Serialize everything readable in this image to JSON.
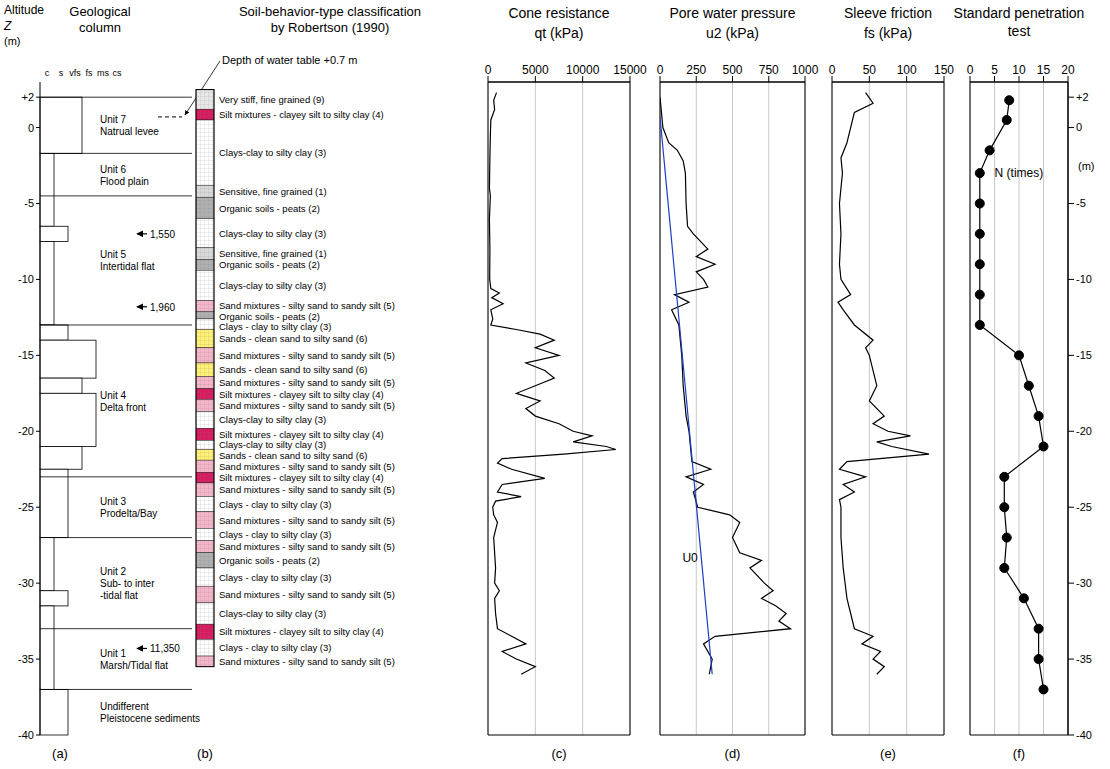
{
  "chart_data": [
    {
      "type": "geological_column",
      "panel": "(a)",
      "title": "Geological column",
      "y_label": "Altitude",
      "y_symbol": "Z",
      "y_unit": "(m)",
      "ylim": [
        -40,
        3
      ],
      "yticks": [
        {
          "value": 2,
          "label": "+2"
        },
        0,
        -5,
        -10,
        -15,
        -20,
        -25,
        -30,
        -35,
        -40
      ],
      "grain_sizes": [
        "c",
        "s",
        "vfs",
        "fs",
        "ms",
        "cs"
      ],
      "layers": [
        {
          "top": 2,
          "bottom": -1.7,
          "grain": "vfs"
        },
        {
          "top": -1.7,
          "bottom": -6.5,
          "grain": "c"
        },
        {
          "top": -6.5,
          "bottom": -7.5,
          "grain": "s"
        },
        {
          "top": -7.5,
          "bottom": -13,
          "grain": "c"
        },
        {
          "top": -13,
          "bottom": -14,
          "grain": "s"
        },
        {
          "top": -14,
          "bottom": -16.5,
          "grain": "fs"
        },
        {
          "top": -16.5,
          "bottom": -17.5,
          "grain": "vfs"
        },
        {
          "top": -17.5,
          "bottom": -21,
          "grain": "fs"
        },
        {
          "top": -21,
          "bottom": -22.5,
          "grain": "vfs"
        },
        {
          "top": -22.5,
          "bottom": -27,
          "grain": "s"
        },
        {
          "top": -27,
          "bottom": -30.5,
          "grain": "c"
        },
        {
          "top": -30.5,
          "bottom": -31.5,
          "grain": "s"
        },
        {
          "top": -31.5,
          "bottom": -37,
          "grain": "c"
        },
        {
          "top": -37,
          "bottom": -40,
          "grain": "s"
        }
      ],
      "units": [
        {
          "top": 2,
          "bottom": -1.7,
          "lines": [
            "Unit 7",
            "Natrual levee"
          ]
        },
        {
          "top": -1.7,
          "bottom": -4.5,
          "lines": [
            "Unit 6",
            "Flood plain"
          ]
        },
        {
          "top": -4.5,
          "bottom": -13,
          "lines": [
            "Unit 5",
            "Intertidal flat"
          ]
        },
        {
          "top": -13,
          "bottom": -23,
          "lines": [
            "Unit 4",
            "Delta front"
          ]
        },
        {
          "top": -23,
          "bottom": -27,
          "lines": [
            "Unit 3",
            "Prodelta/Bay"
          ]
        },
        {
          "top": -27,
          "bottom": -33,
          "lines": [
            "Unit 2",
            "Sub- to inter",
            "-tidal flat"
          ]
        },
        {
          "top": -33,
          "bottom": -37,
          "lines": [
            "Unit 1",
            "Marsh/Tidal flat"
          ]
        },
        {
          "top": -37,
          "bottom": -40,
          "lines": [
            "Undifferent",
            "Pleistocene sediments"
          ]
        }
      ],
      "ages": [
        {
          "y": -7,
          "label": "1,550"
        },
        {
          "y": -11.8,
          "label": "1,960"
        },
        {
          "y": -34.3,
          "label": "11,350"
        }
      ],
      "water_table": {
        "y": 0.7,
        "label": "Depth of water table +0.7 m"
      }
    },
    {
      "type": "classification_column",
      "panel": "(b)",
      "title": "Soil-behavior-type classification by Robertson (1990)",
      "ylim": [
        -40,
        3
      ],
      "bands": [
        {
          "top": 2.5,
          "bottom": 1.2,
          "label": "Very stiff, fine grained (9)",
          "color": "#e8e8e8"
        },
        {
          "top": 1.2,
          "bottom": 0.5,
          "label": "Silt mixtures - clayey silt to silty clay (4)",
          "color": "#d81b60"
        },
        {
          "top": 0.5,
          "bottom": -3.8,
          "label": "Clays-clay to silty clay (3)",
          "color": "#ffffff"
        },
        {
          "top": -3.8,
          "bottom": -4.6,
          "label": "Sensitive, fine grained (1)",
          "color": "#d9d9d9"
        },
        {
          "top": -4.6,
          "bottom": -6,
          "label": "Organic soils - peats (2)",
          "color": "#b0b0b0"
        },
        {
          "top": -6,
          "bottom": -7.9,
          "label": "Clays-clay to silty clay (3)",
          "color": "#ffffff"
        },
        {
          "top": -7.9,
          "bottom": -8.7,
          "label": "Sensitive, fine grained (1)",
          "color": "#d9d9d9"
        },
        {
          "top": -8.7,
          "bottom": -9.4,
          "label": "Organic soils - peats (2)",
          "color": "#b0b0b0"
        },
        {
          "top": -9.4,
          "bottom": -11.4,
          "label": "Clays-clay to silty clay (3)",
          "color": "#ffffff"
        },
        {
          "top": -11.4,
          "bottom": -12.1,
          "label": "Sand mixtures - silty sand to sandy silt (5)",
          "color": "#f4b6c8"
        },
        {
          "top": -12.1,
          "bottom": -12.6,
          "label": "Organic soils - peats (2)",
          "color": "#b0b0b0"
        },
        {
          "top": -12.6,
          "bottom": -13.3,
          "label": "Clays - clay to silty clay (3)",
          "color": "#ffffff"
        },
        {
          "top": -13.3,
          "bottom": -14.5,
          "label": "Sands - clean sand to silty sand (6)",
          "color": "#fff176"
        },
        {
          "top": -14.5,
          "bottom": -15.5,
          "label": "Sand mixtures - silty sand to sandy silt (5)",
          "color": "#f4b6c8"
        },
        {
          "top": -15.5,
          "bottom": -16.4,
          "label": "Sands - clean sand to silty sand (6)",
          "color": "#fff176"
        },
        {
          "top": -16.4,
          "bottom": -17.2,
          "label": "Sand mixtures - silty sand to sandy silt (5)",
          "color": "#f4b6c8"
        },
        {
          "top": -17.2,
          "bottom": -17.9,
          "label": "Silt mixtures - clayey silt to silty clay (4)",
          "color": "#d81b60"
        },
        {
          "top": -17.9,
          "bottom": -18.7,
          "label": "Sand mixtures - silty sand to sandy silt (5)",
          "color": "#f4b6c8"
        },
        {
          "top": -18.7,
          "bottom": -19.8,
          "label": "Clays-clay to silty clay (3)",
          "color": "#ffffff"
        },
        {
          "top": -19.8,
          "bottom": -20.6,
          "label": "Silt mixtures - clayey silt to silty clay (4)",
          "color": "#d81b60"
        },
        {
          "top": -20.6,
          "bottom": -21.2,
          "label": "Clays-clay to silty clay (3)",
          "color": "#ffffff"
        },
        {
          "top": -21.2,
          "bottom": -21.9,
          "label": "Sands - clean sand to silty sand (6)",
          "color": "#fff176"
        },
        {
          "top": -21.9,
          "bottom": -22.7,
          "label": "Sand mixtures - silty sand to sandy silt (5)",
          "color": "#f4b6c8"
        },
        {
          "top": -22.7,
          "bottom": -23.4,
          "label": "Silt mixtures - clayey silt to silty clay (4)",
          "color": "#d81b60"
        },
        {
          "top": -23.4,
          "bottom": -24.3,
          "label": "Sand mixtures - silty sand to sandy silt (5)",
          "color": "#f4b6c8"
        },
        {
          "top": -24.3,
          "bottom": -25.3,
          "label": "Clays - clay to silty clay (3)",
          "color": "#ffffff"
        },
        {
          "top": -25.3,
          "bottom": -26.4,
          "label": "Sand mixtures - silty sand to sandy silt (5)",
          "color": "#f4b6c8"
        },
        {
          "top": -26.4,
          "bottom": -27.2,
          "label": "Clays - clay to silty clay (3)",
          "color": "#ffffff"
        },
        {
          "top": -27.2,
          "bottom": -28,
          "label": "Sand mixtures - silty sand to sandy silt (5)",
          "color": "#f4b6c8"
        },
        {
          "top": -28,
          "bottom": -29,
          "label": "Organic soils - peats (2)",
          "color": "#b0b0b0"
        },
        {
          "top": -29,
          "bottom": -30.2,
          "label": "Clays - clay to silty clay (3)",
          "color": "#ffffff"
        },
        {
          "top": -30.2,
          "bottom": -31.3,
          "label": "Sand mixtures - silty sand to sandy silt (5)",
          "color": "#f4b6c8"
        },
        {
          "top": -31.3,
          "bottom": -32.7,
          "label": "Clays-clay to silty clay (3)",
          "color": "#ffffff"
        },
        {
          "top": -32.7,
          "bottom": -33.7,
          "label": "Silt mixtures - clayey silt to silty clay (4)",
          "color": "#d81b60"
        },
        {
          "top": -33.7,
          "bottom": -34.8,
          "label": "Clays - clay to silty clay (3)",
          "color": "#ffffff"
        },
        {
          "top": -34.8,
          "bottom": -35.5,
          "label": "Sand mixtures - silty sand to sandy silt (5)",
          "color": "#f4b6c8"
        }
      ]
    },
    {
      "type": "profile",
      "panel": "(c)",
      "title": "Cone resistance",
      "x_label": "qt (kPa)",
      "xlim": [
        0,
        15000
      ],
      "xticks": [
        0,
        5000,
        10000,
        15000
      ],
      "ylim": [
        -40,
        3
      ],
      "grid": true,
      "series": [
        {
          "color": "#000000",
          "x": [
            900,
            600,
            700,
            300,
            250,
            200,
            150,
            250,
            150,
            200,
            180,
            300,
            1200,
            400,
            1600,
            300,
            500,
            300,
            3000,
            5500,
            7000,
            5000,
            7500,
            4000,
            6000,
            7000,
            5000,
            3000,
            5500,
            4000,
            5000,
            7500,
            9000,
            11000,
            9000,
            12500,
            13500,
            8000,
            1500,
            1000,
            2500,
            6000,
            1500,
            1000,
            3500,
            800,
            500,
            600,
            1000,
            600,
            700,
            800,
            700,
            1200,
            700,
            800,
            1000,
            2500,
            4000,
            1500,
            3000,
            5000,
            3500
          ],
          "y": [
            2.3,
            1.8,
            1.2,
            0.5,
            -0.5,
            -2,
            -4,
            -4.5,
            -6,
            -8,
            -10,
            -10.6,
            -10.9,
            -11.2,
            -11.6,
            -12,
            -12.6,
            -13,
            -13.3,
            -13.6,
            -14,
            -14.5,
            -15,
            -15.5,
            -16,
            -16.5,
            -17,
            -17.5,
            -18,
            -18.5,
            -19,
            -19.5,
            -20,
            -20.3,
            -20.7,
            -21,
            -21.2,
            -21.5,
            -21.8,
            -22.1,
            -22.5,
            -23.1,
            -23.5,
            -24,
            -24.3,
            -24.6,
            -25,
            -25.5,
            -26,
            -27,
            -28,
            -29,
            -30,
            -30.5,
            -31,
            -32,
            -33,
            -33.5,
            -34,
            -34.5,
            -35,
            -35.5,
            -36
          ]
        }
      ]
    },
    {
      "type": "profile",
      "panel": "(d)",
      "title": "Pore water pressure",
      "x_label": "u2 (kPa)",
      "xlim": [
        0,
        1000
      ],
      "xticks": [
        0,
        250,
        500,
        750,
        1000
      ],
      "ylim": [
        -40,
        3
      ],
      "grid": true,
      "series": [
        {
          "color": "#000000",
          "x": [
            0,
            10,
            20,
            60,
            120,
            160,
            175,
            180,
            190,
            230,
            330,
            250,
            380,
            250,
            300,
            330,
            100,
            200,
            80,
            130,
            150,
            160,
            180,
            200,
            210,
            220,
            350,
            180,
            300,
            230,
            260,
            480,
            550,
            500,
            550,
            700,
            620,
            720,
            780,
            700,
            800,
            870,
            820,
            900,
            380,
            300,
            360,
            340
          ],
          "y": [
            2,
            1,
            0,
            -1,
            -1.5,
            -2.2,
            -3,
            -5,
            -6.5,
            -7,
            -8,
            -8.5,
            -9,
            -9.5,
            -10,
            -10.5,
            -11,
            -11.5,
            -12,
            -13,
            -15,
            -17,
            -19,
            -20,
            -21,
            -22,
            -22.5,
            -23,
            -23.5,
            -24,
            -25,
            -25.5,
            -26,
            -27,
            -28,
            -28.5,
            -29,
            -30,
            -30.5,
            -31,
            -31.5,
            -32,
            -32.5,
            -33,
            -33.5,
            -34,
            -35,
            -36
          ]
        },
        {
          "color": "#1f3fbf",
          "x": [
            0,
            360
          ],
          "y": [
            0.7,
            -36
          ]
        }
      ],
      "annotations": [
        {
          "text": "U0",
          "x": 120,
          "y": -28.3
        }
      ]
    },
    {
      "type": "profile",
      "panel": "(e)",
      "title": "Sleeve friction",
      "x_label": "fs (kPa)",
      "xlim": [
        0,
        150
      ],
      "xticks": [
        0,
        50,
        100,
        150
      ],
      "ylim": [
        -40,
        3
      ],
      "grid": true,
      "series": [
        {
          "color": "#000000",
          "x": [
            45,
            55,
            30,
            25,
            20,
            12,
            14,
            10,
            12,
            10,
            12,
            25,
            8,
            15,
            30,
            55,
            45,
            50,
            55,
            60,
            50,
            70,
            55,
            75,
            105,
            60,
            80,
            130,
            20,
            10,
            45,
            15,
            30,
            10,
            12,
            12,
            15,
            20,
            25,
            30,
            55,
            40,
            65,
            55,
            70,
            60
          ],
          "y": [
            2.3,
            1.6,
            1,
            0,
            -1,
            -2,
            -3,
            -5,
            -7,
            -9,
            -10,
            -11,
            -11.5,
            -12,
            -13,
            -14,
            -14.5,
            -15,
            -16,
            -17,
            -18,
            -19,
            -19.5,
            -20,
            -20.3,
            -20.7,
            -21,
            -21.5,
            -22,
            -22.5,
            -23,
            -23.5,
            -24,
            -24.5,
            -25,
            -27,
            -29,
            -31,
            -32,
            -33,
            -33.5,
            -34,
            -34.5,
            -35,
            -35.5,
            -36
          ]
        }
      ]
    },
    {
      "type": "line",
      "panel": "(f)",
      "title": "Standard penetration test",
      "marker": "circle",
      "xlim": [
        0,
        20
      ],
      "xticks": [
        0,
        5,
        10,
        15,
        20
      ],
      "ylim": [
        -40,
        3
      ],
      "yticks": [
        {
          "value": 2,
          "label": "+2"
        },
        0,
        -5,
        -10,
        -15,
        -20,
        -25,
        -30,
        -35,
        -40
      ],
      "y_unit": "(m)",
      "grid": true,
      "series": [
        {
          "color": "#000000",
          "x": [
            8,
            7.5,
            4,
            2,
            2,
            2,
            2,
            2,
            2,
            10,
            12,
            14,
            15,
            7,
            7,
            7.5,
            7,
            11,
            14,
            14,
            15
          ],
          "y": [
            1.8,
            0.5,
            -1.5,
            -3,
            -5,
            -7,
            -9,
            -11,
            -13,
            -15,
            -17,
            -19,
            -21,
            -23,
            -25,
            -27,
            -29,
            -31,
            -33,
            -35,
            -37
          ]
        }
      ],
      "annotations": [
        {
          "text": "N (times)",
          "x": 4,
          "y": -3
        }
      ]
    }
  ]
}
